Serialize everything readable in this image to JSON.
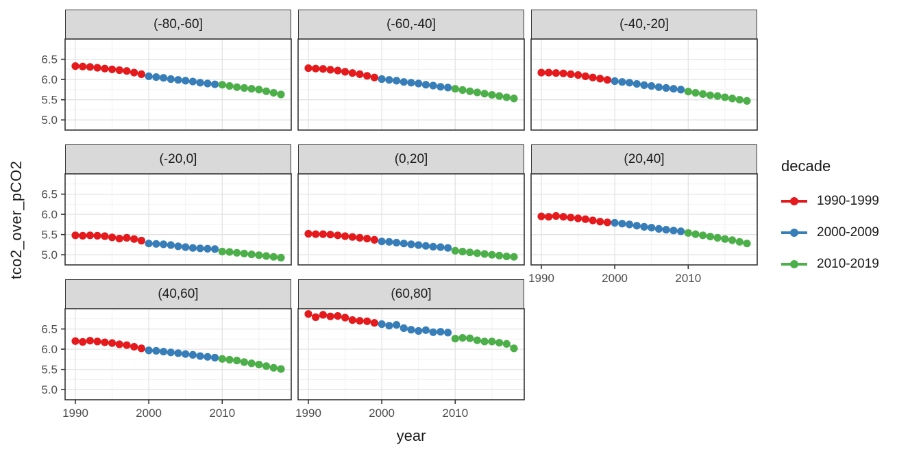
{
  "figure": {
    "y_axis_title": "tco2_over_pCO2",
    "x_axis_title": "year"
  },
  "legend": {
    "title": "decade",
    "entries": [
      {
        "label": "1990-1999",
        "color": "#E41A1C"
      },
      {
        "label": "2000-2009",
        "color": "#377EB8"
      },
      {
        "label": "2010-2019",
        "color": "#4DAF4A"
      }
    ]
  },
  "colors": {
    "strip_fill": "#D9D9D9",
    "panel_border": "#333333",
    "grid_major": "#E3E3E3",
    "grid_minor": "#F1F1F1",
    "tick_mark": "#333333",
    "tick_label": "#4D4D4D"
  },
  "chart_data": {
    "type": "line",
    "title": "",
    "xlabel": "year",
    "ylabel": "tco2_over_pCO2",
    "legend_title": "decade",
    "legend_position": "right",
    "grid": true,
    "x": [
      1990,
      1991,
      1992,
      1993,
      1994,
      1995,
      1996,
      1997,
      1998,
      1999,
      2000,
      2001,
      2002,
      2003,
      2004,
      2005,
      2006,
      2007,
      2008,
      2009,
      2010,
      2011,
      2012,
      2013,
      2014,
      2015,
      2016,
      2017,
      2018
    ],
    "xlim": [
      1988.6,
      2019.4
    ],
    "ylim": [
      4.75,
      7.0
    ],
    "x_ticks": [
      1990,
      2000,
      2010
    ],
    "x_minor": [
      1995,
      2005,
      2015
    ],
    "y_ticks": [
      6.5,
      6.0,
      5.5,
      5.0
    ],
    "y_minor": [
      6.75,
      6.25,
      5.75,
      5.25
    ],
    "decades": [
      {
        "name": "1990-1999",
        "from": 1990,
        "to": 1999,
        "color": "#E41A1C"
      },
      {
        "name": "2000-2009",
        "from": 2000,
        "to": 2009,
        "color": "#377EB8"
      },
      {
        "name": "2010-2019",
        "from": 2010,
        "to": 2019,
        "color": "#4DAF4A"
      }
    ],
    "facets": [
      {
        "label": "(-80,-60]",
        "values": [
          6.33,
          6.32,
          6.31,
          6.29,
          6.27,
          6.25,
          6.23,
          6.21,
          6.17,
          6.13,
          6.08,
          6.06,
          6.04,
          6.01,
          5.99,
          5.97,
          5.95,
          5.92,
          5.9,
          5.88,
          5.87,
          5.84,
          5.81,
          5.79,
          5.77,
          5.75,
          5.71,
          5.67,
          5.63
        ]
      },
      {
        "label": "(-60,-40]",
        "values": [
          6.28,
          6.27,
          6.26,
          6.24,
          6.22,
          6.19,
          6.16,
          6.13,
          6.09,
          6.05,
          6.01,
          5.99,
          5.97,
          5.94,
          5.92,
          5.9,
          5.87,
          5.85,
          5.82,
          5.8,
          5.77,
          5.74,
          5.71,
          5.68,
          5.65,
          5.62,
          5.59,
          5.56,
          5.53
        ]
      },
      {
        "label": "(-40,-20]",
        "values": [
          6.17,
          6.17,
          6.16,
          6.15,
          6.13,
          6.11,
          6.08,
          6.05,
          6.02,
          5.99,
          5.96,
          5.94,
          5.92,
          5.89,
          5.86,
          5.84,
          5.81,
          5.79,
          5.77,
          5.75,
          5.7,
          5.67,
          5.64,
          5.61,
          5.59,
          5.56,
          5.53,
          5.5,
          5.47
        ]
      },
      {
        "label": "(-20,0]",
        "values": [
          5.48,
          5.47,
          5.48,
          5.47,
          5.46,
          5.43,
          5.4,
          5.42,
          5.39,
          5.35,
          5.28,
          5.27,
          5.26,
          5.24,
          5.21,
          5.19,
          5.17,
          5.16,
          5.15,
          5.14,
          5.08,
          5.07,
          5.05,
          5.03,
          5.01,
          4.99,
          4.97,
          4.95,
          4.93
        ]
      },
      {
        "label": "(0,20]",
        "values": [
          5.52,
          5.51,
          5.51,
          5.5,
          5.48,
          5.46,
          5.44,
          5.42,
          5.4,
          5.37,
          5.33,
          5.32,
          5.3,
          5.28,
          5.26,
          5.24,
          5.22,
          5.2,
          5.19,
          5.17,
          5.1,
          5.08,
          5.06,
          5.04,
          5.02,
          5.0,
          4.98,
          4.96,
          4.95
        ]
      },
      {
        "label": "(20,40]",
        "values": [
          5.95,
          5.94,
          5.96,
          5.94,
          5.92,
          5.9,
          5.88,
          5.85,
          5.82,
          5.8,
          5.79,
          5.77,
          5.75,
          5.72,
          5.69,
          5.67,
          5.64,
          5.62,
          5.6,
          5.58,
          5.54,
          5.51,
          5.48,
          5.45,
          5.42,
          5.39,
          5.36,
          5.32,
          5.28
        ]
      },
      {
        "label": "(40,60]",
        "values": [
          6.2,
          6.18,
          6.21,
          6.19,
          6.17,
          6.15,
          6.12,
          6.1,
          6.06,
          6.02,
          5.97,
          5.96,
          5.94,
          5.92,
          5.9,
          5.88,
          5.86,
          5.83,
          5.81,
          5.79,
          5.76,
          5.74,
          5.72,
          5.68,
          5.65,
          5.62,
          5.58,
          5.54,
          5.51
        ]
      },
      {
        "label": "(60,80]",
        "values": [
          6.87,
          6.79,
          6.85,
          6.81,
          6.82,
          6.78,
          6.72,
          6.7,
          6.69,
          6.65,
          6.62,
          6.58,
          6.6,
          6.52,
          6.48,
          6.45,
          6.47,
          6.42,
          6.43,
          6.41,
          6.26,
          6.28,
          6.27,
          6.22,
          6.19,
          6.19,
          6.16,
          6.13,
          6.02
        ]
      }
    ],
    "facets_with_x_axis": [
      5,
      6,
      7
    ],
    "facets_with_y_axis": [
      0,
      3,
      6
    ]
  }
}
